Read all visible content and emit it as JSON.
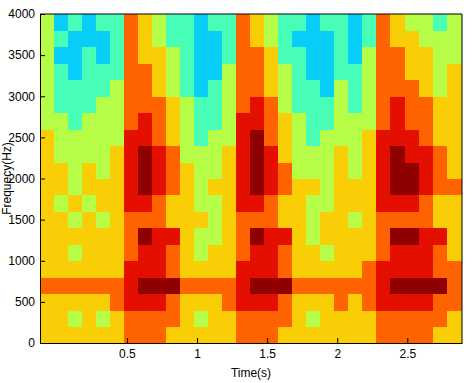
{
  "chart_data": {
    "type": "heatmap",
    "x_label": "Time(s)",
    "y_label": "Frequecy(Hz)",
    "xlim": [
      -0.12,
      2.89
    ],
    "ylim": [
      0,
      4000
    ],
    "xticks": [
      0.5,
      1,
      1.5,
      2,
      2.5
    ],
    "yticks": [
      0,
      500,
      1000,
      1500,
      2000,
      2500,
      3000,
      3500,
      4000
    ],
    "grid": false,
    "x": [
      -0.12,
      -0.02,
      0.08,
      0.18,
      0.28,
      0.38,
      0.48,
      0.58,
      0.68,
      0.78,
      0.88,
      0.98,
      1.08,
      1.18,
      1.28,
      1.38,
      1.48,
      1.58,
      1.68,
      1.78,
      1.88,
      1.98,
      2.08,
      2.18,
      2.28,
      2.38,
      2.48,
      2.58,
      2.68,
      2.78,
      2.89
    ],
    "y": [
      0,
      200,
      400,
      600,
      800,
      1000,
      1200,
      1400,
      1600,
      1800,
      2000,
      2200,
      2400,
      2600,
      2800,
      3000,
      3200,
      3400,
      3600,
      3800,
      4000
    ],
    "zlim": [
      0,
      9
    ],
    "cells": [
      [
        6,
        6,
        6,
        7,
        6,
        6,
        6,
        6,
        6,
        6,
        6,
        6,
        6,
        5,
        5,
        5,
        5,
        5,
        5,
        5
      ],
      [
        6,
        6,
        6,
        7,
        6,
        6,
        6,
        6,
        5,
        6,
        6,
        5,
        5,
        5,
        4,
        4,
        4,
        3,
        4,
        3
      ],
      [
        6,
        5,
        6,
        7,
        6,
        5,
        6,
        5,
        6,
        5,
        5,
        5,
        5,
        4,
        4,
        4,
        3,
        3,
        3,
        4
      ],
      [
        6,
        6,
        6,
        7,
        6,
        6,
        6,
        6,
        5,
        6,
        6,
        5,
        5,
        5,
        4,
        4,
        4,
        4,
        3,
        3
      ],
      [
        6,
        5,
        6,
        7,
        6,
        6,
        6,
        5,
        6,
        6,
        5,
        5,
        5,
        5,
        5,
        4,
        4,
        3,
        3,
        4
      ],
      [
        6,
        6,
        7,
        7,
        6,
        6,
        6,
        6,
        6,
        6,
        6,
        6,
        5,
        5,
        5,
        5,
        4,
        4,
        4,
        4
      ],
      [
        7,
        7,
        8,
        8,
        8,
        7,
        7,
        7,
        8,
        8,
        8,
        8,
        8,
        7,
        7,
        7,
        7,
        7,
        7,
        7
      ],
      [
        7,
        7,
        8,
        9,
        8,
        8,
        9,
        7,
        8,
        9,
        9,
        9,
        8,
        8,
        7,
        7,
        7,
        6,
        6,
        6
      ],
      [
        7,
        7,
        8,
        9,
        8,
        8,
        8,
        7,
        7,
        8,
        8,
        8,
        7,
        7,
        7,
        6,
        6,
        6,
        5,
        5
      ],
      [
        6,
        7,
        7,
        9,
        7,
        7,
        8,
        6,
        6,
        7,
        7,
        7,
        6,
        6,
        6,
        5,
        5,
        5,
        4,
        4
      ],
      [
        6,
        6,
        6,
        7,
        6,
        6,
        6,
        6,
        6,
        6,
        6,
        5,
        5,
        5,
        5,
        4,
        4,
        4,
        4,
        4
      ],
      [
        6,
        5,
        6,
        7,
        6,
        5,
        5,
        6,
        5,
        5,
        5,
        5,
        4,
        4,
        4,
        3,
        3,
        3,
        3,
        3
      ],
      [
        6,
        6,
        6,
        7,
        6,
        6,
        5,
        5,
        5,
        6,
        5,
        5,
        5,
        4,
        4,
        4,
        3,
        3,
        3,
        4
      ],
      [
        6,
        6,
        7,
        7,
        6,
        6,
        6,
        6,
        6,
        6,
        6,
        6,
        5,
        5,
        5,
        5,
        5,
        4,
        4,
        4
      ],
      [
        7,
        7,
        8,
        8,
        8,
        7,
        7,
        7,
        8,
        8,
        8,
        8,
        8,
        8,
        7,
        7,
        7,
        7,
        7,
        7
      ],
      [
        7,
        7,
        8,
        9,
        8,
        8,
        9,
        7,
        8,
        9,
        9,
        9,
        9,
        8,
        8,
        7,
        7,
        7,
        6,
        6
      ],
      [
        7,
        7,
        8,
        9,
        8,
        8,
        8,
        7,
        7,
        8,
        8,
        8,
        7,
        7,
        7,
        6,
        6,
        6,
        5,
        5
      ],
      [
        6,
        7,
        7,
        9,
        7,
        7,
        8,
        6,
        6,
        7,
        7,
        6,
        6,
        6,
        5,
        5,
        5,
        4,
        4,
        4
      ],
      [
        6,
        6,
        6,
        7,
        6,
        6,
        6,
        6,
        6,
        6,
        5,
        5,
        5,
        5,
        4,
        4,
        4,
        4,
        3,
        4
      ],
      [
        6,
        5,
        6,
        7,
        6,
        6,
        5,
        5,
        5,
        6,
        5,
        5,
        4,
        4,
        4,
        4,
        3,
        3,
        3,
        3
      ],
      [
        6,
        6,
        6,
        7,
        6,
        5,
        6,
        6,
        5,
        5,
        5,
        5,
        5,
        4,
        4,
        3,
        3,
        3,
        3,
        4
      ],
      [
        6,
        6,
        7,
        7,
        6,
        6,
        6,
        6,
        6,
        6,
        6,
        6,
        5,
        5,
        5,
        5,
        4,
        4,
        4,
        4
      ],
      [
        6,
        6,
        6,
        7,
        6,
        6,
        6,
        5,
        6,
        6,
        5,
        5,
        5,
        5,
        4,
        4,
        4,
        3,
        3,
        3
      ],
      [
        6,
        6,
        7,
        7,
        7,
        6,
        6,
        6,
        6,
        6,
        6,
        6,
        6,
        5,
        5,
        5,
        5,
        5,
        4,
        4
      ],
      [
        7,
        7,
        8,
        8,
        8,
        7,
        7,
        7,
        8,
        8,
        8,
        8,
        8,
        7,
        7,
        7,
        7,
        7,
        7,
        7
      ],
      [
        7,
        7,
        8,
        9,
        8,
        8,
        9,
        7,
        8,
        9,
        9,
        9,
        8,
        8,
        8,
        7,
        7,
        7,
        6,
        6
      ],
      [
        7,
        7,
        8,
        9,
        8,
        8,
        9,
        7,
        8,
        9,
        9,
        8,
        8,
        7,
        7,
        7,
        6,
        6,
        6,
        5
      ],
      [
        7,
        7,
        8,
        9,
        8,
        8,
        8,
        7,
        7,
        8,
        8,
        8,
        7,
        7,
        7,
        6,
        6,
        6,
        5,
        5
      ],
      [
        6,
        7,
        7,
        9,
        7,
        7,
        8,
        6,
        6,
        7,
        7,
        7,
        6,
        6,
        6,
        5,
        5,
        5,
        5,
        4
      ],
      [
        6,
        6,
        7,
        7,
        7,
        6,
        6,
        6,
        6,
        7,
        6,
        6,
        6,
        6,
        6,
        6,
        6,
        5,
        5,
        5
      ]
    ]
  }
}
